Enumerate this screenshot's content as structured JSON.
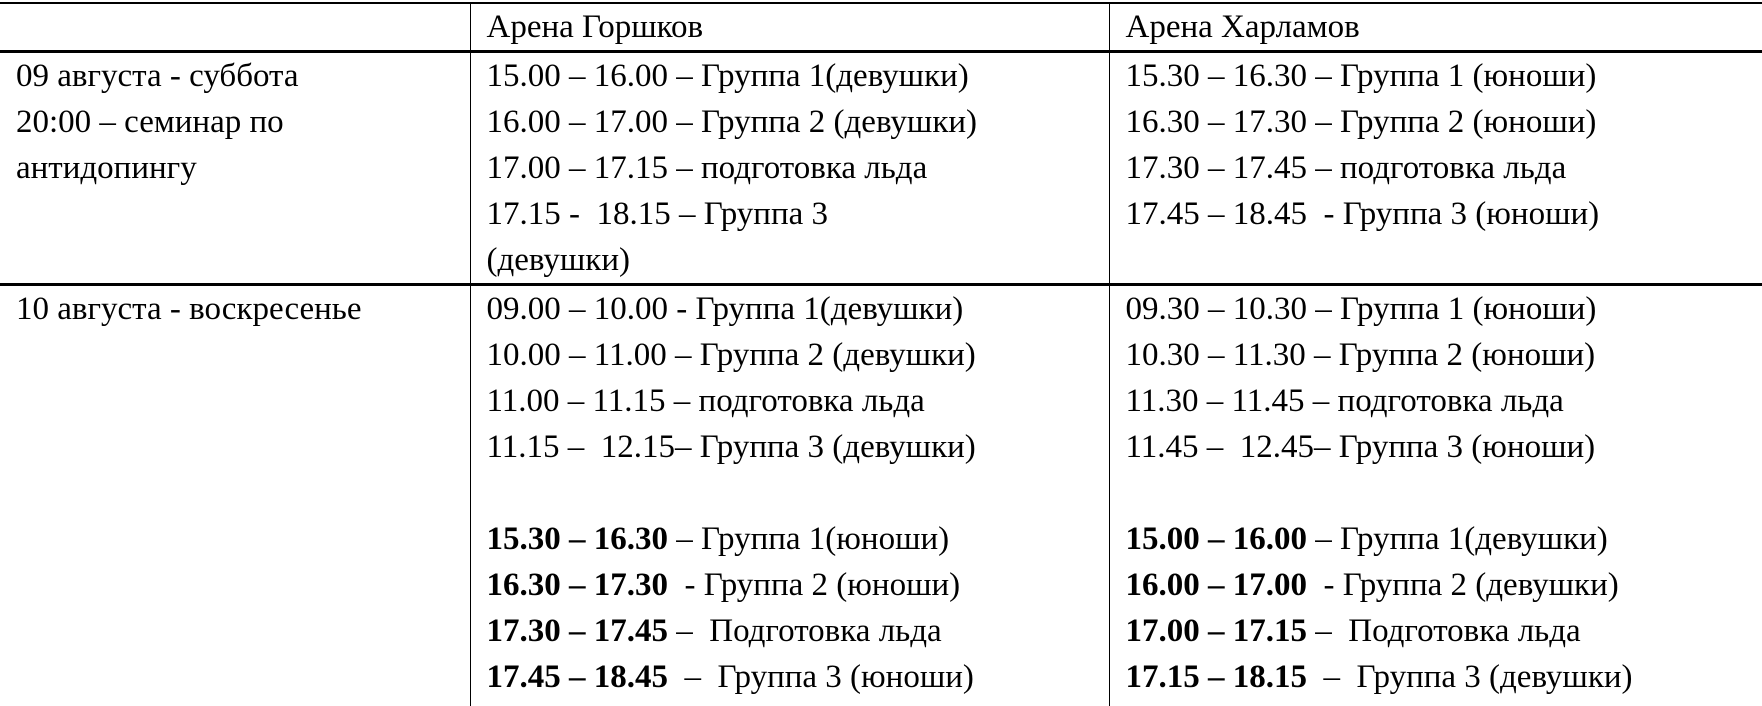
{
  "header": {
    "col0": "",
    "col1": "Арена Горшков",
    "col2": "Арена Харламов"
  },
  "rows": [
    {
      "day": [
        "09 августа - суббота",
        "20:00 – семинар по",
        "антидопингу"
      ],
      "gorshkov": [
        "15.00 – 16.00 – Группа 1(девушки)",
        "16.00 – 17.00 – Группа 2 (девушки)",
        "17.00 – 17.15 – подготовка льда",
        "17.15 -  18.15 – Группа 3",
        "(девушки)"
      ],
      "kharlamov": [
        "15.30 – 16.30 – Группа 1 (юноши)",
        "16.30 – 17.30 – Группа 2 (юноши)",
        "17.30 – 17.45 – подготовка льда",
        "17.45 – 18.45  - Группа 3 (юноши)"
      ]
    },
    {
      "day": [
        "10 августа - воскресенье"
      ],
      "gorshkov": [
        "09.00 – 10.00 - Группа 1(девушки)",
        "10.00 – 11.00 – Группа 2 (девушки)",
        "11.00 – 11.15 – подготовка льда",
        "11.15 –  12.15– Группа 3 (девушки)"
      ],
      "gorshkov_bold": [
        {
          "time": "15.30 – 16.30",
          "rest": " – Группа 1(юноши)"
        },
        {
          "time": "16.30 – 17.30",
          "rest": "  - Группа 2 (юноши)"
        },
        {
          "time": "17.30 – 17.45",
          "rest": " –  Подготовка льда"
        },
        {
          "time": "17.45 – 18.45",
          "rest": "  –  Группа 3 (юноши)"
        }
      ],
      "kharlamov": [
        "09.30 – 10.30 – Группа 1 (юноши)",
        "10.30 – 11.30 – Группа 2 (юноши)",
        "11.30 – 11.45 – подготовка льда",
        "11.45 –  12.45– Группа 3 (юноши)"
      ],
      "kharlamov_bold": [
        {
          "time": "15.00 – 16.00",
          "rest": " – Группа 1(девушки)"
        },
        {
          "time": "16.00 – 17.00",
          "rest": "  - Группа 2 (девушки)"
        },
        {
          "time": "17.00 – 17.15",
          "rest": " –  Подготовка льда"
        },
        {
          "time": "17.15 – 18.15",
          "rest": "  –  Группа 3 (девушки)"
        }
      ]
    }
  ]
}
